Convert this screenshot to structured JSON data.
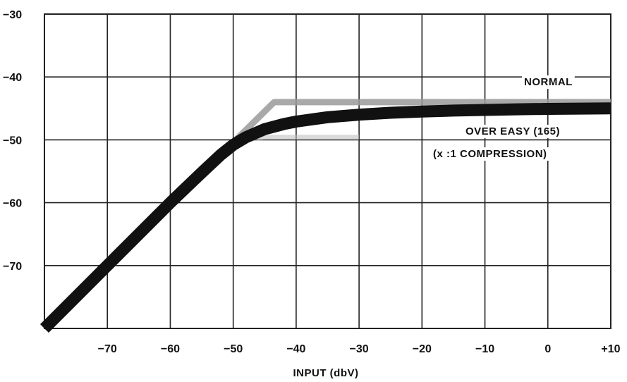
{
  "chart_data": {
    "type": "line",
    "title": "",
    "xlabel": "INPUT (dbV)",
    "ylabel": "",
    "xlim": [
      -80,
      10
    ],
    "ylim": [
      -80,
      -30
    ],
    "grid": true,
    "x_ticks": [
      -70,
      -60,
      -50,
      -40,
      -30,
      -20,
      -10,
      0,
      10
    ],
    "x_tick_labels": [
      "−70",
      "−60",
      "−50",
      "−40",
      "−30",
      "−20",
      "−10",
      "0",
      "+10"
    ],
    "y_ticks": [
      -30,
      -40,
      -50,
      -60,
      -70
    ],
    "y_tick_labels": [
      "−30",
      "−40",
      "−50",
      "−60",
      "−70"
    ],
    "annotations": {
      "normal": "NORMAL",
      "over_easy": "OVER EASY (165)",
      "compression": "(x :1 COMPRESSION)"
    },
    "series": [
      {
        "key": "normal",
        "color": "#9a9a9a",
        "x": [
          -80,
          -43.5,
          10
        ],
        "y": [
          -80,
          -44,
          -44
        ]
      },
      {
        "key": "over_easy",
        "color": "#111111",
        "x": [
          -80,
          -70,
          -60,
          -55,
          -52,
          -50,
          -48,
          -45,
          -42,
          -40,
          -35,
          -30,
          -25,
          -20,
          -15,
          -10,
          -5,
          0,
          5,
          10
        ],
        "y": [
          -80,
          -70,
          -60,
          -55.2,
          -52.4,
          -50.8,
          -49.6,
          -48.3,
          -47.5,
          -47.1,
          -46.4,
          -46.0,
          -45.7,
          -45.5,
          -45.35,
          -45.25,
          -45.15,
          -45.08,
          -45.03,
          -45.0
        ]
      },
      {
        "key": "compression",
        "color": "#bbbbbb",
        "x": [
          -52,
          -48,
          -45,
          -40,
          -30
        ],
        "y": [
          -52,
          -50,
          -49.6,
          -49.6,
          -49.6
        ]
      }
    ]
  }
}
